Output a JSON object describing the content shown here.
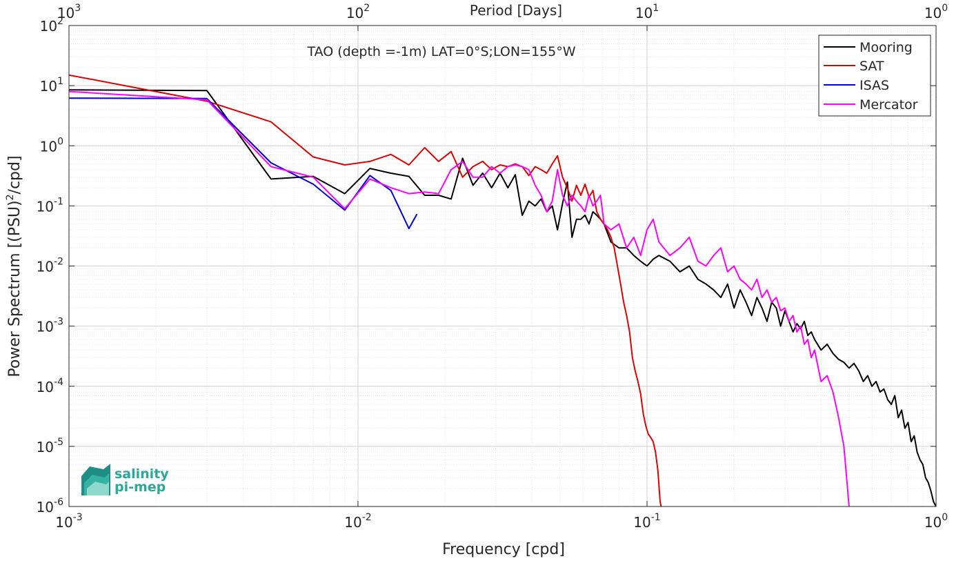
{
  "chart_data": {
    "type": "line",
    "title": "TAO (depth =-1m) LAT=0°S;LON=155°W",
    "xlabel": "Frequency [cpd]",
    "ylabel": "Power Spectrum [(PSU)",
    "ylabel_sup": "2",
    "ylabel_tail": "/cpd]",
    "top_xlabel": "Period [Days]",
    "xscale": "log",
    "yscale": "log",
    "xlim": [
      0.001,
      1
    ],
    "ylim": [
      1e-06,
      100
    ],
    "grid": true,
    "legend_position": "top-right",
    "x_ticks": [
      {
        "value": 0.001,
        "base": "10",
        "exp": "-3"
      },
      {
        "value": 0.01,
        "base": "10",
        "exp": "-2"
      },
      {
        "value": 0.1,
        "base": "10",
        "exp": "-1"
      },
      {
        "value": 1,
        "base": "10",
        "exp": "0"
      }
    ],
    "top_x_ticks": [
      {
        "frequency": 0.001,
        "base": "10",
        "exp": "3"
      },
      {
        "frequency": 0.01,
        "base": "10",
        "exp": "2"
      },
      {
        "frequency": 0.1,
        "base": "10",
        "exp": "1"
      },
      {
        "frequency": 1,
        "base": "10",
        "exp": "0"
      }
    ],
    "y_ticks": [
      {
        "value": 100,
        "base": "10",
        "exp": "2"
      },
      {
        "value": 10,
        "base": "10",
        "exp": "1"
      },
      {
        "value": 1,
        "base": "10",
        "exp": "0"
      },
      {
        "value": 0.1,
        "base": "10",
        "exp": "-1"
      },
      {
        "value": 0.01,
        "base": "10",
        "exp": "-2"
      },
      {
        "value": 0.001,
        "base": "10",
        "exp": "-3"
      },
      {
        "value": 0.0001,
        "base": "10",
        "exp": "-4"
      },
      {
        "value": 1e-05,
        "base": "10",
        "exp": "-5"
      },
      {
        "value": 1e-06,
        "base": "10",
        "exp": "-6"
      }
    ],
    "series": [
      {
        "name": "Mooring",
        "color": "#000000",
        "x": [
          0.001,
          0.003,
          0.005,
          0.007,
          0.009,
          0.011,
          0.013,
          0.015,
          0.017,
          0.019,
          0.021,
          0.023,
          0.025,
          0.027,
          0.029,
          0.031,
          0.033,
          0.035,
          0.037,
          0.039,
          0.041,
          0.043,
          0.045,
          0.047,
          0.049,
          0.051,
          0.053,
          0.055,
          0.057,
          0.059,
          0.061,
          0.063,
          0.065,
          0.067,
          0.069,
          0.071,
          0.075,
          0.08,
          0.085,
          0.09,
          0.095,
          0.1,
          0.105,
          0.11,
          0.12,
          0.13,
          0.14,
          0.15,
          0.16,
          0.17,
          0.18,
          0.19,
          0.2,
          0.21,
          0.22,
          0.23,
          0.24,
          0.25,
          0.26,
          0.27,
          0.28,
          0.29,
          0.3,
          0.31,
          0.32,
          0.33,
          0.34,
          0.35,
          0.36,
          0.37,
          0.38,
          0.4,
          0.42,
          0.44,
          0.46,
          0.48,
          0.5,
          0.52,
          0.54,
          0.56,
          0.58,
          0.6,
          0.62,
          0.64,
          0.66,
          0.68,
          0.7,
          0.72,
          0.74,
          0.76,
          0.78,
          0.8,
          0.82,
          0.84,
          0.86,
          0.88,
          0.9,
          0.92,
          0.94,
          0.96,
          0.98,
          1.0
        ],
        "y": [
          8.5,
          8.3,
          0.28,
          0.31,
          0.16,
          0.42,
          0.35,
          0.31,
          0.15,
          0.15,
          0.13,
          0.62,
          0.22,
          0.35,
          0.2,
          0.35,
          0.2,
          0.33,
          0.07,
          0.12,
          0.1,
          0.13,
          0.08,
          0.1,
          0.04,
          0.11,
          0.25,
          0.03,
          0.06,
          0.06,
          0.07,
          0.05,
          0.08,
          0.07,
          0.06,
          0.05,
          0.025,
          0.02,
          0.02,
          0.015,
          0.012,
          0.01,
          0.013,
          0.015,
          0.012,
          0.008,
          0.01,
          0.006,
          0.005,
          0.004,
          0.003,
          0.005,
          0.002,
          0.004,
          0.0025,
          0.0015,
          0.003,
          0.002,
          0.0012,
          0.0025,
          0.002,
          0.001,
          0.0018,
          0.0012,
          0.0008,
          0.0011,
          0.0009,
          0.0012,
          0.0007,
          0.0008,
          0.0006,
          0.0004,
          0.0005,
          0.00035,
          0.00028,
          0.00025,
          0.0002,
          0.00024,
          0.00018,
          0.00012,
          0.00015,
          0.0001,
          0.00012,
          8e-05,
          9e-05,
          6e-05,
          5e-05,
          7e-05,
          3e-05,
          4e-05,
          2e-05,
          2.5e-05,
          1.2e-05,
          1.5e-05,
          8e-06,
          6e-06,
          5e-06,
          3e-06,
          2.5e-06,
          1.8e-06,
          1.2e-06,
          1e-06
        ]
      },
      {
        "name": "SAT",
        "color": "#e00000",
        "x": [
          0.001,
          0.003,
          0.005,
          0.007,
          0.009,
          0.011,
          0.013,
          0.015,
          0.017,
          0.019,
          0.021,
          0.023,
          0.025,
          0.027,
          0.029,
          0.031,
          0.033,
          0.035,
          0.037,
          0.039,
          0.041,
          0.043,
          0.045,
          0.047,
          0.049,
          0.051,
          0.053,
          0.055,
          0.057,
          0.059,
          0.061,
          0.063,
          0.065,
          0.067,
          0.069,
          0.071,
          0.073,
          0.075,
          0.077,
          0.079,
          0.081,
          0.083,
          0.085,
          0.087,
          0.089,
          0.091,
          0.093,
          0.095,
          0.097,
          0.099,
          0.101,
          0.103,
          0.105,
          0.107,
          0.109,
          0.111,
          0.113
        ],
        "y": [
          15,
          5.5,
          2.5,
          0.65,
          0.48,
          0.55,
          0.72,
          0.48,
          0.93,
          0.55,
          0.8,
          0.3,
          0.45,
          0.55,
          0.4,
          0.48,
          0.45,
          0.5,
          0.45,
          0.32,
          0.45,
          0.4,
          0.35,
          0.5,
          0.68,
          0.3,
          0.2,
          0.12,
          0.22,
          0.15,
          0.23,
          0.14,
          0.18,
          0.08,
          0.06,
          0.05,
          0.04,
          0.03,
          0.02,
          0.01,
          0.005,
          0.0025,
          0.0015,
          0.0008,
          0.0003,
          0.00018,
          0.00012,
          7.5e-05,
          3.5e-05,
          2.2e-05,
          1.6e-05,
          1.4e-05,
          1.2e-05,
          8e-06,
          4e-06,
          1.2e-06,
          8e-07
        ]
      },
      {
        "name": "ISAS",
        "color": "#0000e0",
        "x": [
          0.001,
          0.003,
          0.005,
          0.007,
          0.009,
          0.011,
          0.013,
          0.015,
          0.016
        ],
        "y": [
          6.2,
          6.1,
          0.52,
          0.23,
          0.085,
          0.32,
          0.18,
          0.042,
          0.073
        ]
      },
      {
        "name": "Mercator",
        "color": "#ff00ff",
        "x": [
          0.001,
          0.003,
          0.005,
          0.007,
          0.009,
          0.011,
          0.013,
          0.015,
          0.017,
          0.019,
          0.021,
          0.023,
          0.025,
          0.027,
          0.029,
          0.031,
          0.033,
          0.035,
          0.037,
          0.039,
          0.041,
          0.043,
          0.045,
          0.047,
          0.049,
          0.051,
          0.053,
          0.055,
          0.057,
          0.059,
          0.061,
          0.063,
          0.065,
          0.067,
          0.069,
          0.071,
          0.075,
          0.08,
          0.085,
          0.09,
          0.095,
          0.1,
          0.105,
          0.11,
          0.12,
          0.13,
          0.14,
          0.15,
          0.16,
          0.17,
          0.18,
          0.19,
          0.2,
          0.21,
          0.22,
          0.23,
          0.24,
          0.25,
          0.26,
          0.27,
          0.28,
          0.29,
          0.3,
          0.31,
          0.32,
          0.33,
          0.34,
          0.35,
          0.36,
          0.37,
          0.38,
          0.4,
          0.42,
          0.44,
          0.46,
          0.48,
          0.5
        ],
        "y": [
          8,
          5.8,
          0.45,
          0.3,
          0.09,
          0.28,
          0.2,
          0.16,
          0.17,
          0.16,
          0.4,
          0.55,
          0.3,
          0.3,
          0.45,
          0.35,
          0.45,
          0.48,
          0.45,
          0.4,
          0.22,
          0.15,
          0.08,
          0.12,
          0.4,
          0.15,
          0.1,
          0.15,
          0.12,
          0.1,
          0.08,
          0.15,
          0.1,
          0.12,
          0.15,
          0.05,
          0.04,
          0.05,
          0.02,
          0.03,
          0.015,
          0.04,
          0.06,
          0.025,
          0.015,
          0.02,
          0.03,
          0.012,
          0.01,
          0.015,
          0.02,
          0.008,
          0.01,
          0.006,
          0.005,
          0.004,
          0.006,
          0.003,
          0.004,
          0.0025,
          0.003,
          0.0018,
          0.002,
          0.0012,
          0.0015,
          0.0008,
          0.001,
          0.0005,
          0.0006,
          0.0003,
          0.0004,
          0.00012,
          0.00015,
          8e-05,
          3e-05,
          1e-05,
          1e-06
        ]
      }
    ]
  },
  "logo": {
    "line1": "salinity",
    "line2": "pi-mep",
    "color": "#2aa89a"
  }
}
